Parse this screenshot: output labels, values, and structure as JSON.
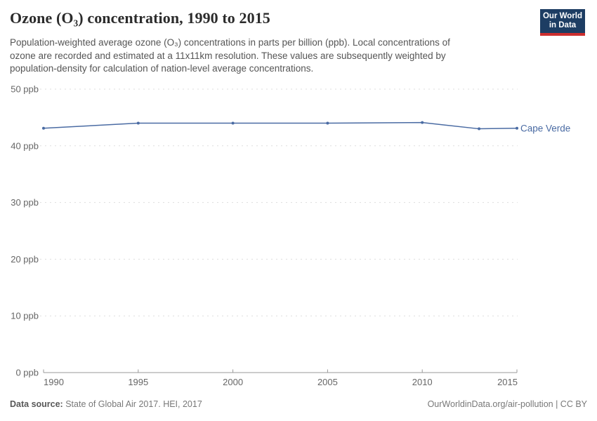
{
  "chart_data": {
    "type": "line",
    "title": "Ozone (O₃) concentration, 1990 to 2015",
    "subtitle_lines": [
      "Population-weighted average ozone (O₃) concentrations in parts per billion (ppb). Local concentrations of",
      "ozone are recorded and estimated at a 11x11km resolution. These values are subsequently weighted by",
      "population-density for calculation of nation-level average concentrations."
    ],
    "series": [
      {
        "name": "Cape Verde",
        "color": "#4a6ba3",
        "x": [
          1990,
          1995,
          2000,
          2005,
          2010,
          2013,
          2015
        ],
        "values": [
          43.1,
          44.0,
          44.0,
          44.0,
          44.1,
          43.0,
          43.1
        ]
      }
    ],
    "xlim": [
      1990,
      2015
    ],
    "ylim": [
      0,
      50
    ],
    "x_ticks": [
      "1990",
      "1995",
      "2000",
      "2005",
      "2010",
      "2015"
    ],
    "y_ticks": [
      0,
      10,
      20,
      30,
      40,
      50
    ],
    "y_tick_suffix": " ppb",
    "xlabel": "",
    "ylabel": "",
    "grid": "horizontal-dashed",
    "legend_position": "end-of-line"
  },
  "logo": {
    "line1": "Our World",
    "line2": "in Data"
  },
  "footer": {
    "datasource_label": "Data source:",
    "datasource_text": "State of Global Air 2017. HEI, 2017",
    "attribution": "OurWorldinData.org/air-pollution | CC BY"
  },
  "colors": {
    "series_blue": "#4a6ba3",
    "logo_navy": "#1d3d63",
    "logo_red": "#cc2e2e",
    "gridline_gray": "#dddddd",
    "axis_gray": "#999999",
    "tick_label_gray": "#666666"
  }
}
